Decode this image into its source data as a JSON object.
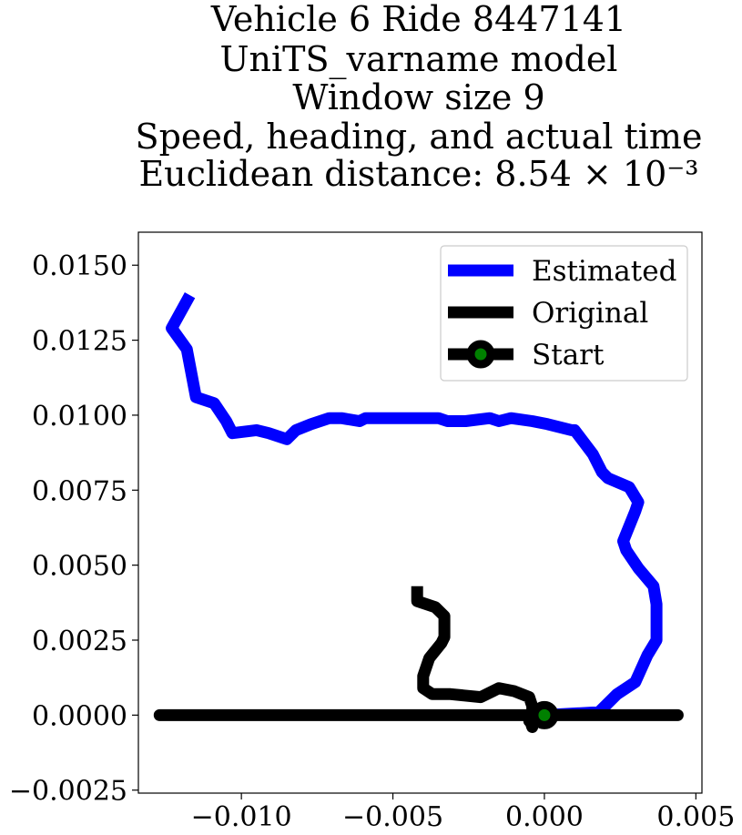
{
  "chart_data": {
    "type": "line",
    "title_lines": [
      "Vehicle 6 Ride 8447141",
      "UniTS_varname model",
      "Window size 9",
      "Speed, heading, and actual time",
      "Euclidean distance: 8.54 × 10⁻³"
    ],
    "xlabel": "",
    "ylabel": "",
    "xlim": [
      -0.0134,
      0.0052
    ],
    "ylim": [
      -0.0026,
      0.0161
    ],
    "x_ticks": [
      -0.01,
      -0.005,
      0.0,
      0.005
    ],
    "x_tick_labels": [
      "−0.010",
      "−0.005",
      "0.000",
      "0.005"
    ],
    "y_ticks": [
      -0.0025,
      0.0,
      0.0025,
      0.005,
      0.0075,
      0.01,
      0.0125,
      0.015
    ],
    "y_tick_labels": [
      "−0.0025",
      "0.0000",
      "0.0025",
      "0.0050",
      "0.0075",
      "0.0100",
      "0.0125",
      "0.0150"
    ],
    "grid": false,
    "legend_position": "top-right",
    "series": [
      {
        "name": "Estimated",
        "color": "#0000ff",
        "x": [
          0.0,
          0.0018,
          0.0024,
          0.003,
          0.0034,
          0.0037,
          0.0037,
          0.0036,
          0.0031,
          0.0027,
          0.0026,
          0.003,
          0.0031,
          0.0028,
          0.0021,
          0.0019,
          0.0016,
          0.001,
          0.0009,
          0.0001,
          -0.0004,
          -0.0011,
          -0.0015,
          -0.0018,
          -0.0026,
          -0.0032,
          -0.0035,
          -0.0043,
          -0.0051,
          -0.0059,
          -0.0061,
          -0.0067,
          -0.0071,
          -0.0077,
          -0.0082,
          -0.0085,
          -0.0091,
          -0.0095,
          -0.0103,
          -0.0105,
          -0.0109,
          -0.0115,
          -0.0115,
          -0.0118,
          -0.0123,
          -0.0117
        ],
        "y": [
          0.0,
          0.0001,
          0.0007,
          0.0011,
          0.002,
          0.0025,
          0.0037,
          0.0043,
          0.0049,
          0.0055,
          0.0058,
          0.0068,
          0.0071,
          0.0076,
          0.0079,
          0.0081,
          0.0087,
          0.0095,
          0.0095,
          0.0097,
          0.0098,
          0.0099,
          0.0098,
          0.0099,
          0.0098,
          0.0098,
          0.0099,
          0.0099,
          0.0099,
          0.0099,
          0.0098,
          0.0099,
          0.0099,
          0.0097,
          0.0095,
          0.0092,
          0.0094,
          0.0095,
          0.0094,
          0.0098,
          0.0104,
          0.0106,
          0.0106,
          0.0122,
          0.0129,
          0.014
        ]
      },
      {
        "name": "Original",
        "color": "#000000",
        "x": [
          -0.0042,
          -0.0042,
          -0.0036,
          -0.0033,
          -0.0033,
          -0.0034,
          -0.0038,
          -0.004,
          -0.004,
          -0.0037,
          -0.0031,
          -0.0021,
          -0.0017,
          -0.0015,
          -0.001,
          -0.0005,
          -0.0004,
          -0.0004,
          -0.0005,
          -0.0005,
          -0.0001,
          0.0,
          0.0018,
          0.003,
          0.0039,
          0.0044,
          0.0038,
          0.0024,
          0.0011,
          0.001,
          -0.0008,
          -0.0024,
          -0.0033,
          -0.0047,
          -0.0059,
          -0.0064,
          -0.0071,
          -0.0082,
          -0.0096,
          -0.0109,
          -0.0121,
          -0.0127,
          -0.0126,
          -0.0122,
          -0.0119,
          -0.0115,
          -0.0114,
          -0.0114,
          -0.0117,
          -0.0121,
          -0.0125,
          -0.0127,
          -0.0127,
          -0.0126,
          -0.0119,
          -0.0117,
          -0.0114,
          -0.011,
          -0.0103,
          -0.0089,
          -0.0078,
          -0.0073,
          -0.0068,
          -0.0063,
          -0.0061,
          -0.0049,
          -0.0043,
          -0.0042,
          -0.0046,
          -0.0054,
          -0.0063,
          -0.0066,
          -0.0068,
          -0.0072,
          -0.0077,
          -0.0082,
          -0.009,
          -0.0101,
          -0.0114,
          -0.0121,
          -0.0126,
          -0.0127,
          -0.0126
        ],
        "y": [
          0.0043,
          0.0038,
          0.0036,
          0.0033,
          0.0026,
          0.0024,
          0.0019,
          0.0013,
          0.0009,
          0.0007,
          0.0007,
          0.0006,
          0.0008,
          0.0009,
          0.0008,
          0.0006,
          0.0003,
          -0.0004,
          -0.0001,
          -0.0002,
          0.0,
          0.0,
          0.0,
          0.0,
          0.0,
          0.0,
          0.0,
          0.0,
          0.0,
          0.0,
          0.0,
          0.0,
          0.0,
          0.0,
          0.0,
          0.0,
          0.0,
          0.0,
          0.0,
          0.0,
          0.0,
          0.0,
          0.0,
          0.0,
          0.0,
          0.0,
          0.0,
          0.0,
          0.0,
          0.0,
          0.0,
          0.0,
          0.0,
          0.0,
          0.0,
          0.0,
          0.0,
          0.0,
          0.0,
          0.0,
          0.0,
          0.0,
          0.0,
          0.0,
          0.0,
          0.0,
          0.0,
          0.0,
          0.0,
          0.0,
          0.0,
          0.0,
          0.0,
          0.0,
          0.0,
          0.0,
          0.0,
          0.0,
          0.0,
          0.0,
          0.0,
          0.0,
          0.0
        ]
      }
    ],
    "start_point": {
      "name": "Start",
      "x": 0.0,
      "y": 0.0,
      "marker_color": "#008000",
      "edge_color": "#000000"
    }
  }
}
